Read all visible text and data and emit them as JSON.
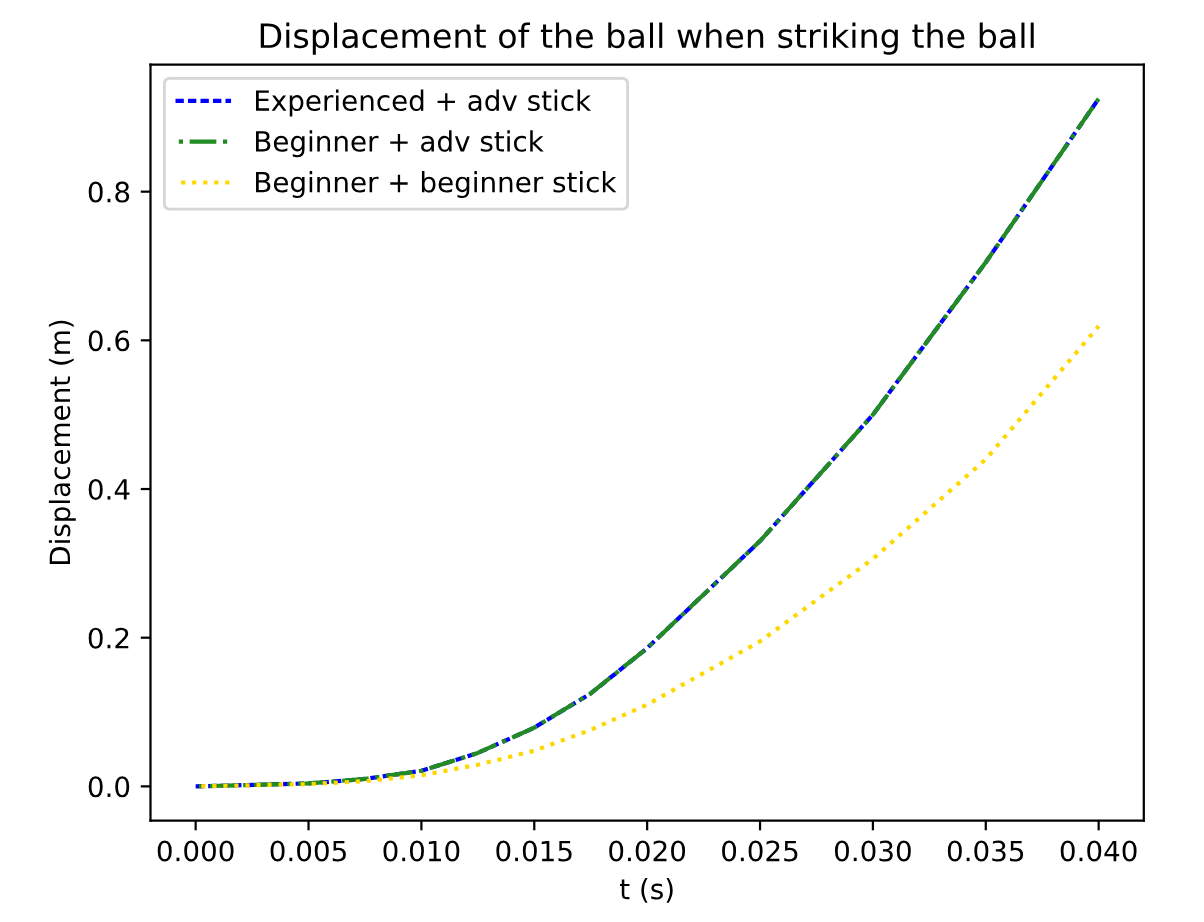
{
  "chart_data": {
    "type": "line",
    "title": "Displacement of the ball when striking the ball",
    "xlabel": "t (s)",
    "ylabel": "Displacement (m)",
    "x": [
      0.0,
      0.005,
      0.0075,
      0.01,
      0.0125,
      0.015,
      0.0175,
      0.02,
      0.025,
      0.03,
      0.035,
      0.04
    ],
    "series": [
      {
        "name": "Experienced + adv stick",
        "color": "#0000ff",
        "line_style": "dashed",
        "values": [
          0.0,
          0.004,
          0.01,
          0.021,
          0.045,
          0.079,
          0.125,
          0.186,
          0.33,
          0.5,
          0.705,
          0.925
        ]
      },
      {
        "name": "Beginner + adv stick",
        "color": "#228b22",
        "line_style": "dashdot",
        "values": [
          0.0,
          0.004,
          0.01,
          0.021,
          0.045,
          0.079,
          0.125,
          0.186,
          0.33,
          0.5,
          0.705,
          0.925
        ]
      },
      {
        "name": "Beginner + beginner stick",
        "color": "#ffd700",
        "line_style": "dotted",
        "values": [
          0.0,
          0.003,
          0.007,
          0.015,
          0.029,
          0.048,
          0.076,
          0.11,
          0.195,
          0.306,
          0.44,
          0.619
        ]
      }
    ],
    "xlim": [
      -0.002,
      0.042
    ],
    "ylim": [
      -0.046,
      0.971
    ],
    "xticks": [
      {
        "value": 0.0,
        "label": "0.000"
      },
      {
        "value": 0.005,
        "label": "0.005"
      },
      {
        "value": 0.01,
        "label": "0.010"
      },
      {
        "value": 0.015,
        "label": "0.015"
      },
      {
        "value": 0.02,
        "label": "0.020"
      },
      {
        "value": 0.025,
        "label": "0.025"
      },
      {
        "value": 0.03,
        "label": "0.030"
      },
      {
        "value": 0.035,
        "label": "0.035"
      },
      {
        "value": 0.04,
        "label": "0.040"
      }
    ],
    "yticks": [
      {
        "value": 0.0,
        "label": "0.0"
      },
      {
        "value": 0.2,
        "label": "0.2"
      },
      {
        "value": 0.4,
        "label": "0.4"
      },
      {
        "value": 0.6,
        "label": "0.6"
      },
      {
        "value": 0.8,
        "label": "0.8"
      }
    ],
    "legend": "top left",
    "grid": false,
    "marker": "none"
  }
}
